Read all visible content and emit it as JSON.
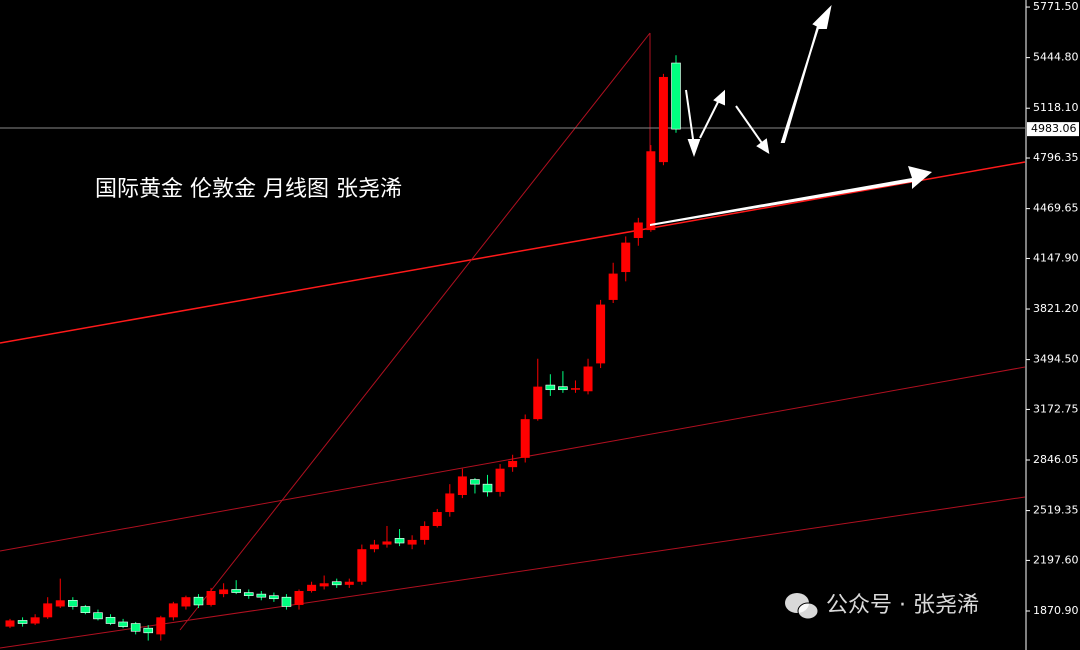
{
  "chart_data": {
    "type": "candlestick",
    "title": "国际黄金  伦敦金 月线图 张尧浠",
    "watermark": "公众号 · 张尧浠",
    "up_color": "#ff0000",
    "down_color": "#00ff80",
    "last_price": 4983.06,
    "ylim": [
      1619,
      5817
    ],
    "yticks": [
      {
        "value": 5771.5,
        "label": "5771.50"
      },
      {
        "value": 5444.8,
        "label": "5444.80"
      },
      {
        "value": 5118.1,
        "label": "5118.10"
      },
      4796.35,
      4469.65,
      {
        "value": 4147.9,
        "label": "4147.90"
      },
      {
        "value": 3821.2,
        "label": "3821.20"
      },
      {
        "value": 3494.5,
        "label": "3494.50"
      },
      3172.75,
      2846.05,
      2519.35,
      {
        "value": 2197.6,
        "label": "2197.60"
      },
      {
        "value": 1870.9,
        "label": "1870.90"
      }
    ],
    "open": [
      1770,
      1810,
      1790,
      1830,
      1900,
      1940,
      1900,
      1860,
      1830,
      1800,
      1790,
      1760,
      1720,
      1830,
      1900,
      1960,
      1910,
      1980,
      2010,
      1990,
      1980,
      1970,
      1960,
      1910,
      2000,
      2030,
      2060,
      2040,
      2060,
      2270,
      2300,
      2340,
      2300,
      2330,
      2420,
      2510,
      2620,
      2720,
      2690,
      2640,
      2800,
      2860,
      3110,
      3330,
      3320,
      3300,
      3290,
      3470,
      3880,
      4060,
      4280,
      4331,
      4770,
      5410
    ],
    "high": [
      1820,
      1830,
      1850,
      1960,
      2080,
      1960,
      1910,
      1880,
      1850,
      1820,
      1800,
      1780,
      1840,
      1930,
      1970,
      1980,
      2020,
      2050,
      2070,
      2010,
      2000,
      1990,
      1980,
      2010,
      2060,
      2100,
      2080,
      2080,
      2300,
      2330,
      2420,
      2400,
      2360,
      2450,
      2530,
      2690,
      2790,
      2730,
      2750,
      2820,
      2880,
      3140,
      3500,
      3400,
      3420,
      3360,
      3500,
      3880,
      4120,
      4290,
      4410,
      4880,
      5340,
      5460
    ],
    "low": [
      1760,
      1770,
      1780,
      1820,
      1890,
      1880,
      1850,
      1810,
      1780,
      1760,
      1720,
      1680,
      1680,
      1810,
      1880,
      1890,
      1900,
      1960,
      1980,
      1950,
      1940,
      1930,
      1880,
      1880,
      1990,
      2010,
      2020,
      2020,
      2040,
      2250,
      2280,
      2290,
      2270,
      2300,
      2410,
      2480,
      2600,
      2630,
      2610,
      2610,
      2770,
      2830,
      3100,
      3260,
      3280,
      3280,
      3270,
      3440,
      3860,
      4000,
      4230,
      4320,
      4750,
      4960
    ],
    "close": [
      1810,
      1790,
      1830,
      1920,
      1940,
      1900,
      1860,
      1820,
      1790,
      1770,
      1740,
      1730,
      1830,
      1920,
      1960,
      1910,
      2000,
      2010,
      1990,
      1970,
      1960,
      1950,
      1900,
      2000,
      2040,
      2050,
      2040,
      2060,
      2270,
      2300,
      2320,
      2310,
      2330,
      2420,
      2510,
      2630,
      2740,
      2690,
      2640,
      2790,
      2840,
      3110,
      3320,
      3300,
      3300,
      3310,
      3450,
      3850,
      4050,
      4250,
      4380,
      4840,
      5320,
      4983.06
    ]
  }
}
